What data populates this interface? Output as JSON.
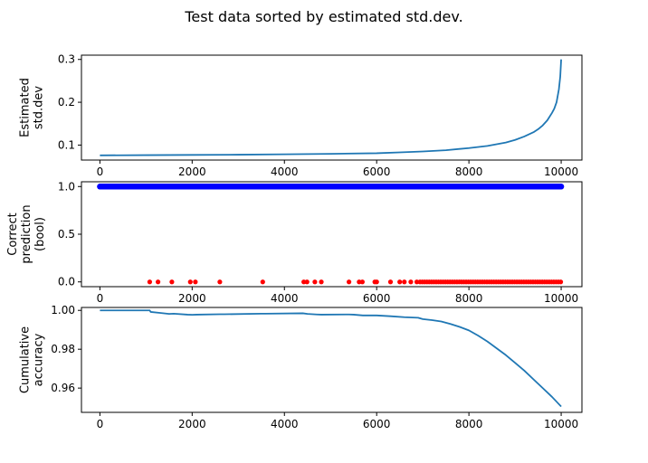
{
  "figure": {
    "title": "Test data sorted by estimated std.dev."
  },
  "colors": {
    "line": "#1f77b4",
    "correct": "#0000ff",
    "incorrect": "#ff0000"
  },
  "chart_data": [
    {
      "type": "line",
      "ylabel": [
        "Estimated",
        "std.dev"
      ],
      "xlim": [
        -400,
        10450
      ],
      "ylim": [
        0.065,
        0.31
      ],
      "xticks": [
        0,
        2000,
        4000,
        6000,
        8000,
        10000
      ],
      "yticks": [
        0.1,
        0.2,
        0.3
      ],
      "ytick_labels": [
        "0.1",
        "0.2",
        "0.3"
      ],
      "series": [
        {
          "x": [
            0,
            1000,
            2000,
            3000,
            4000,
            5000,
            6000,
            6500,
            7000,
            7500,
            8000,
            8400,
            8800,
            9000,
            9200,
            9400,
            9500,
            9600,
            9700,
            9800,
            9850,
            9900,
            9950,
            9980,
            10000
          ],
          "y": [
            0.076,
            0.0765,
            0.077,
            0.0775,
            0.0785,
            0.0795,
            0.081,
            0.083,
            0.085,
            0.088,
            0.093,
            0.098,
            0.106,
            0.112,
            0.12,
            0.13,
            0.137,
            0.146,
            0.158,
            0.175,
            0.185,
            0.2,
            0.23,
            0.26,
            0.3
          ]
        }
      ]
    },
    {
      "type": "scatter",
      "ylabel": [
        "Correct",
        "prediction",
        "(bool)"
      ],
      "xlim": [
        -400,
        10450
      ],
      "ylim": [
        -0.05,
        1.05
      ],
      "xticks": [
        0,
        2000,
        4000,
        6000,
        8000,
        10000
      ],
      "yticks": [
        0.0,
        0.5,
        1.0
      ],
      "ytick_labels": [
        "0.0",
        "0.5",
        "1.0"
      ],
      "correct_range": [
        0,
        10000
      ],
      "incorrect_x": [
        1080,
        1260,
        1560,
        1960,
        2070,
        2600,
        3530,
        4420,
        4490,
        4660,
        4800,
        5400,
        5620,
        5690,
        5960,
        6000,
        6300,
        6500,
        6600,
        6740,
        6870,
        6940,
        6990,
        7040,
        7090,
        7140,
        7190,
        7240,
        7290,
        7340,
        7390,
        7440,
        7490,
        7540,
        7590,
        7640,
        7690,
        7740,
        7790,
        7840,
        7890,
        7940,
        7990,
        8040,
        8090,
        8140,
        8190,
        8240,
        8290,
        8340,
        8390,
        8440,
        8490,
        8540,
        8590,
        8640,
        8690,
        8740,
        8790,
        8840,
        8890,
        8940,
        8990,
        9040,
        9090,
        9140,
        9190,
        9240,
        9290,
        9340,
        9390,
        9440,
        9490,
        9540,
        9590,
        9640,
        9690,
        9740,
        9790,
        9840,
        9890,
        9940,
        9990
      ]
    },
    {
      "type": "line",
      "ylabel": [
        "Cumulative",
        "accuracy"
      ],
      "xlim": [
        -400,
        10450
      ],
      "ylim": [
        0.9475,
        1.0015
      ],
      "xticks": [
        0,
        2000,
        4000,
        6000,
        8000,
        10000
      ],
      "yticks": [
        0.96,
        0.98,
        1.0
      ],
      "ytick_labels": [
        "0.96",
        "0.98",
        "1.00"
      ],
      "series": [
        {
          "x": [
            0,
            1080,
            1100,
            1300,
            1500,
            1600,
            1900,
            2000,
            2100,
            2600,
            2700,
            3500,
            3600,
            4400,
            4500,
            4700,
            4800,
            5400,
            5500,
            5700,
            6000,
            6300,
            6600,
            6900,
            7000,
            7200,
            7400,
            7600,
            7800,
            8000,
            8200,
            8400,
            8600,
            8800,
            9000,
            9200,
            9400,
            9600,
            9800,
            10000
          ],
          "y": [
            1.0,
            1.0,
            0.9992,
            0.9987,
            0.9982,
            0.9983,
            0.9978,
            0.9977,
            0.9978,
            0.998,
            0.998,
            0.9983,
            0.9983,
            0.9985,
            0.9982,
            0.9979,
            0.9978,
            0.9979,
            0.9978,
            0.9974,
            0.9974,
            0.997,
            0.9965,
            0.9962,
            0.9955,
            0.995,
            0.9943,
            0.993,
            0.9915,
            0.9897,
            0.987,
            0.984,
            0.9805,
            0.977,
            0.973,
            0.969,
            0.9645,
            0.96,
            0.9555,
            0.9505
          ]
        }
      ]
    }
  ]
}
